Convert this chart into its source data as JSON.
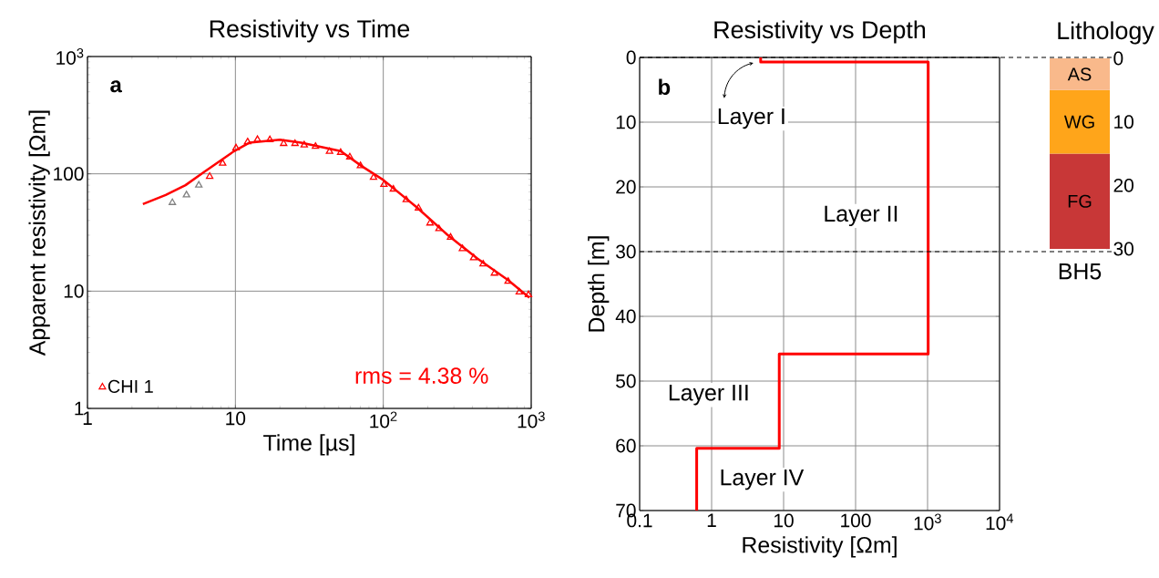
{
  "chart_data": [
    {
      "type": "scatter",
      "title": "Resistivity vs Time",
      "xlabel": "Time [µs]",
      "ylabel": "Apparent resistivity [Ωm]",
      "log": "xy",
      "xlim": [
        1,
        1000
      ],
      "ylim": [
        1,
        1000
      ],
      "xticks": [
        1,
        10,
        {
          "value": 100,
          "label": "10$^{2}$"
        },
        {
          "value": 1000,
          "label": "10$^{3}$"
        }
      ],
      "yticks": [
        1,
        10,
        100,
        {
          "value": 1000,
          "label": "10$^{3}$"
        }
      ],
      "grid": true,
      "legend": "bottom left",
      "annotations": [
        "a",
        "rms = 4.38 %"
      ],
      "series": [
        {
          "name": "CHI 1",
          "color": "#ff0000",
          "marker": "triangle",
          "x": [
            6.7,
            8.2,
            10.1,
            12.1,
            14.1,
            17.1,
            21.2,
            25.3,
            29.2,
            34.8,
            43.3,
            51.5,
            59.4,
            70.1,
            85.9,
            101,
            117,
            143,
            173,
            207,
            238,
            285,
            343,
            408,
            473,
            564,
            698,
            831,
            958
          ],
          "values": [
            95,
            123,
            166,
            187,
            196,
            195,
            181,
            181,
            176,
            171,
            155,
            152,
            139,
            117,
            93,
            81,
            74,
            60,
            51,
            38,
            34,
            28.7,
            23,
            19.2,
            17,
            14.2,
            12.1,
            9.8,
            9.3
          ]
        },
        {
          "color": "#808080",
          "marker": "triangle",
          "x": [
            3.75,
            4.67,
            5.66
          ],
          "values": [
            56.8,
            66,
            80
          ]
        },
        {
          "type": "line",
          "color": "#ff0000",
          "marker": "none",
          "x": [
            2.37,
            3.38,
            4.6,
            6.1,
            9.8,
            12.4,
            20,
            27.8,
            51.5,
            71.7,
            100,
            168,
            270,
            434,
            698,
            972
          ],
          "values": [
            55.2,
            66,
            80,
            103,
            156,
            184,
            195,
            184,
            156,
            116,
            88.7,
            52,
            30.4,
            18.9,
            12.4,
            8.8
          ]
        }
      ]
    },
    {
      "type": "line",
      "title": "Resistivity vs Depth",
      "xlabel": "Resistivity [Ωm]",
      "ylabel": "Depth [m]",
      "log": "x",
      "xlim": [
        0.1,
        10000
      ],
      "ylim": [
        70,
        0
      ],
      "xticks": [
        0.1,
        1,
        10,
        100,
        {
          "value": 1000,
          "label": "10$^{3}$"
        },
        {
          "value": 10000,
          "label": "10$^{4}$"
        }
      ],
      "yticks": [
        0,
        10,
        20,
        30,
        40,
        50,
        60,
        70
      ],
      "grid": true,
      "annotations": [
        "b",
        "Layer I",
        "Layer II",
        "Layer III",
        "Layer IV"
      ],
      "ref_lines": [
        {
          "axis": "y",
          "value": 0,
          "color": "#000000",
          "line_style": "dashed"
        },
        {
          "axis": "y",
          "value": 30,
          "color": "#000000",
          "line_style": "dashed"
        }
      ],
      "series": [
        {
          "color": "#ff0000",
          "x": [
            4.8,
            4.8,
            1020,
            1020,
            8.7,
            8.7,
            0.62,
            0.62
          ],
          "values": [
            0,
            0.7,
            0.7,
            45.8,
            45.8,
            60.4,
            60.4,
            70
          ]
        }
      ]
    },
    {
      "type": "bar",
      "stacked": true,
      "title": "Lithology",
      "xlabel": "BH5",
      "categories": [
        null
      ],
      "ylim": [
        30,
        0
      ],
      "yticks": [
        0,
        10,
        20,
        30
      ],
      "series": [
        {
          "name": "AS",
          "color": "#f9b98b",
          "values": [
            5
          ]
        },
        {
          "name": "WG",
          "color": "#ffa51a",
          "values": [
            10
          ]
        },
        {
          "name": "FG",
          "color": "#c83737",
          "values": [
            15
          ]
        }
      ]
    }
  ]
}
